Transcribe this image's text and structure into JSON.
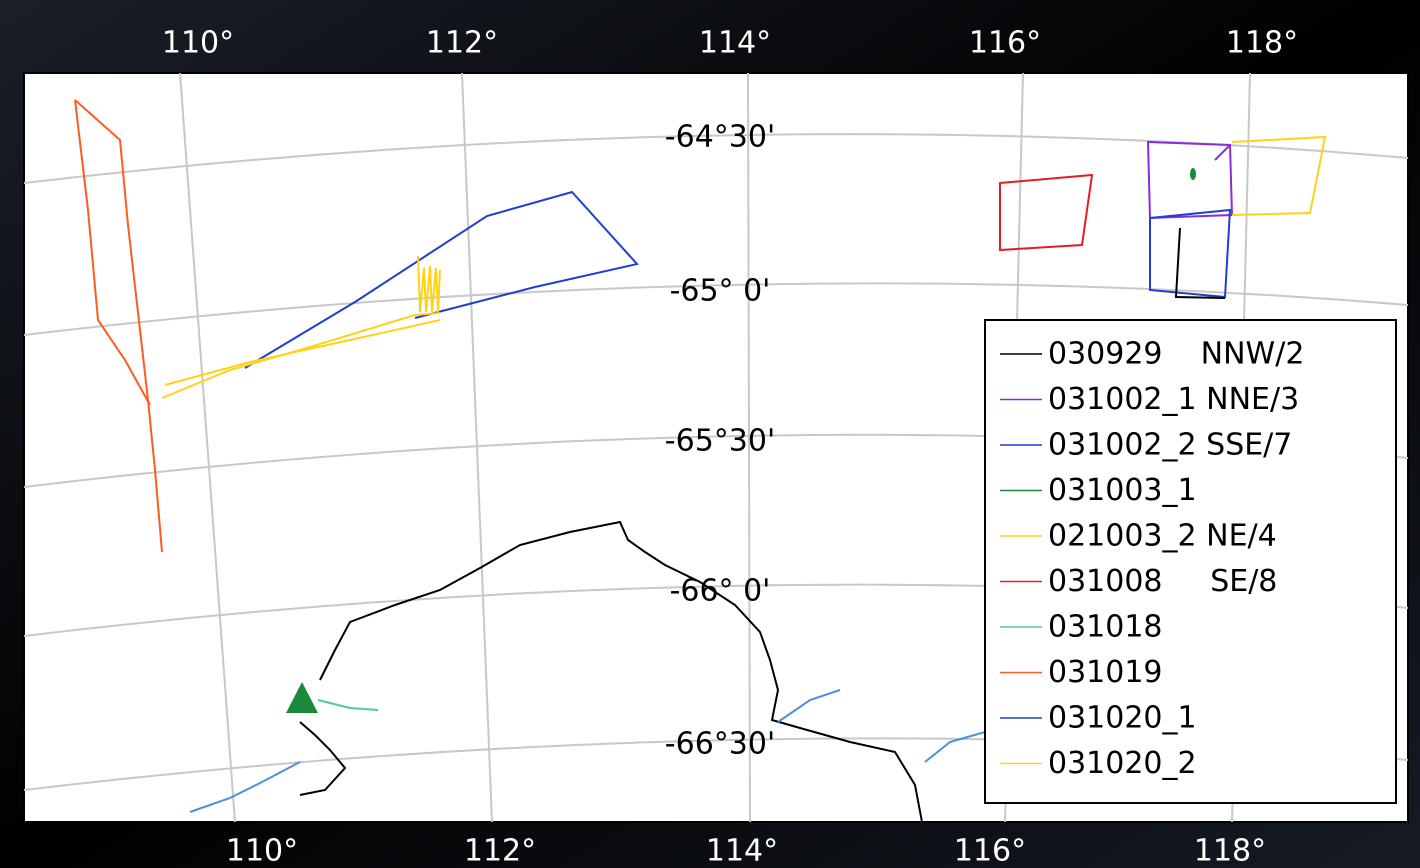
{
  "map": {
    "lon_labels_top": [
      "110°",
      "112°",
      "114°",
      "116°",
      "118°"
    ],
    "lon_labels_bottom": [
      "110°",
      "112°",
      "114°",
      "116°",
      "118°"
    ],
    "lat_labels": [
      "-64°30'",
      "-65° 0'",
      "-65°30'",
      "-66° 0'",
      "-66°30'"
    ],
    "legend": [
      {
        "label": "030929    NNW/2",
        "color": "#000000"
      },
      {
        "label": "031002_1 NNE/3",
        "color": "#8a2be2"
      },
      {
        "label": "031002_2 SSE/7",
        "color": "#1f3fd0"
      },
      {
        "label": "031003_1",
        "color": "#1a8a3a"
      },
      {
        "label": "021003_2 NE/4",
        "color": "#ffd21a"
      },
      {
        "label": "031008     SE/8",
        "color": "#e02020"
      },
      {
        "label": "031018",
        "color": "#50c8a0"
      },
      {
        "label": "031019",
        "color": "#ff5a1f"
      },
      {
        "label": "031020_1",
        "color": "#1f3fd0"
      },
      {
        "label": "031020_2",
        "color": "#ffd21a"
      }
    ]
  }
}
